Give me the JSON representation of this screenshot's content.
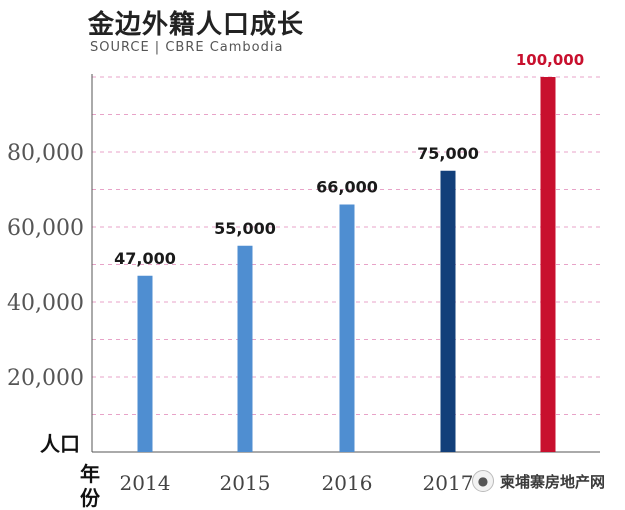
{
  "header": {
    "title": "金边外籍人口成长",
    "source": "SOURCE | CBRE Cambodia"
  },
  "axis_words": {
    "y": "人口",
    "x_line1": "年",
    "x_line2": "份"
  },
  "watermark": {
    "icon": "wechat-icon",
    "text": "柬埔寨房地产网"
  },
  "colors": {
    "bar_light": "#4f8ed1",
    "bar_dark": "#123f7a",
    "bar_red": "#c8102e",
    "grid": "#e8a3c8",
    "axis": "#555555",
    "label_text": "#1a1a1a",
    "label_red": "#c8102e"
  },
  "chart_data": {
    "type": "bar",
    "categories": [
      "2014",
      "2015",
      "2016",
      "2017",
      ""
    ],
    "values": [
      47000,
      55000,
      66000,
      75000,
      100000
    ],
    "data_labels": [
      "47,000",
      "55,000",
      "66,000",
      "75,000",
      "100,000"
    ],
    "bar_colors": [
      "#4f8ed1",
      "#4f8ed1",
      "#4f8ed1",
      "#123f7a",
      "#c8102e"
    ],
    "y_ticks": [
      20000,
      40000,
      60000,
      80000
    ],
    "y_tick_labels": [
      "20,000",
      "40,000",
      "60,000",
      "80,000"
    ],
    "grid_values": [
      10000,
      20000,
      30000,
      40000,
      50000,
      60000,
      70000,
      80000,
      90000,
      100000
    ],
    "ylim": [
      0,
      100000
    ],
    "grid": true
  }
}
